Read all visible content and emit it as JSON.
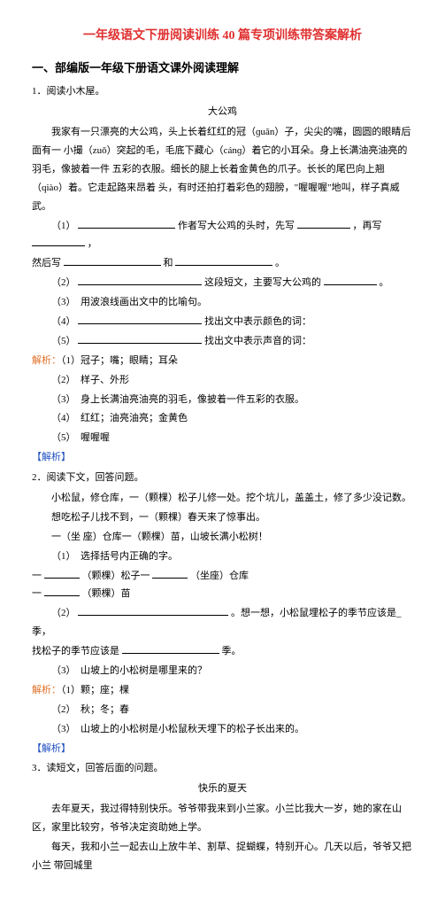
{
  "title": "一年级语文下册阅读训练 40 篇专项训练带答案解析",
  "sectionHead": "一、部编版一年级下册语文课外阅读理解",
  "item1": {
    "num": "1．阅读小木屋。",
    "subtitle": "大公鸡",
    "p1": "我家有一只漂亮的大公鸡，头上长着红红的冠（ɡuān）子，尖尖的嘴，圆圆的眼睛后面有一  小撮（zuǒ）突起的毛，毛底下藏心（cánɡ）着它的小耳朵。身上长满油亮油亮的羽毛，像披着一件  五彩的衣服。细长的腿上长着金黄色的爪子。长长的尾巴向上翘（qiào）着。它走起路来昂着  头，有时还拍打着彩色的翅膀，\"喔喔喔\"地叫，样子真威武。",
    "q1a": "（1）",
    "q1b": "作者写大公鸡的头时，先写",
    "q1c": "，再写",
    "q1d": "，",
    "q1e": "然后写",
    "q1f": "和",
    "q1g": "。",
    "q2": "（2）",
    "q2b": "这段短文，主要写大公鸡的",
    "q2c": "。",
    "q3": "（3）　用波浪线画出文中的比喻句。",
    "q4a": "（4）",
    "q4b": "找出文中表示颜色的词：",
    "q5a": "（5）",
    "q5b": "找出文中表示声音的词：",
    "ax_label": "解析：",
    "a1": "（1）冠子；嘴；眼睛；耳朵",
    "a2": "（2）　样子、外形",
    "a3": "（3）　身上长满油亮油亮的羽毛，像披着一件五彩的衣服。",
    "a4": "（4）　红红；油亮油亮；金黄色",
    "a5": "（5）　喔喔喔",
    "jx": "【解析】"
  },
  "item2": {
    "num": "2．阅读下文，回答问题。",
    "p1": "小松鼠，修仓库，一（颗棵）松子儿修一处。挖个坑儿，盖盖土，修了多少没记数。",
    "p2": "想吃松子儿找不到，一（颗棵）春天来了惊事出。",
    "p3": "一（坐 座）仓库一（颗棵）苗，山坡长满小松树！",
    "q1": "（1）　选择括号内正确的字。",
    "q1line1a": "一",
    "q1line1b": "（颗棵）松子一",
    "q1line1c": "（坐座）仓库",
    "q1line2a": "一",
    "q1line2b": "（颗棵）苗",
    "q2a": "（2）",
    "q2b": "。想一想，小松鼠埋松子的季节应该是_季，",
    "q2c": "找松子的季节应该是",
    "q2d": "季。",
    "q3": "（3）　山坡上的小松树是哪里来的？",
    "ax_label": "解析：",
    "a1": "（1）颗；座；棵",
    "a2": "（2）　秋；冬；春",
    "a3": "（3）　山坡上的小松树是小松鼠秋天埋下的松子长出来的。",
    "jx": "【解析】"
  },
  "item3": {
    "num": "3．读短文，回答后面的问题。",
    "subtitle": "快乐的夏天",
    "p1": "去年夏天，我过得特别快乐。爷爷带我来到小兰家。小兰比我大一岁，她的家在山区，家里比较穷，爷爷决定资助她上学。",
    "p2": "每天，我和小兰一起去山上放牛羊、割草、捉蝴蝶，特别开心。几天以后，爷爷又把小兰  带回城里"
  }
}
